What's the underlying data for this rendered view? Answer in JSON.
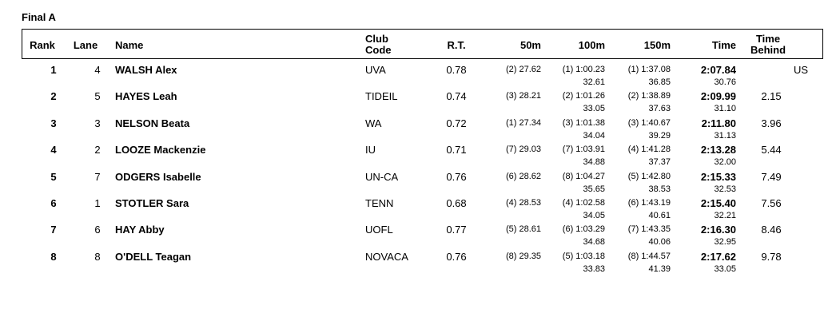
{
  "title": "Final A",
  "table": {
    "columns": [
      "Rank",
      "Lane",
      "Name",
      "Club Code",
      "R.T.",
      "50m",
      "100m",
      "150m",
      "Time",
      "Time Behind"
    ],
    "rows": [
      {
        "rank": "1",
        "lane": "4",
        "name": "WALSH Alex",
        "club": "UVA",
        "rt": "0.78",
        "s50": "(2) 27.62",
        "s100": "(1) 1:00.23",
        "s150": "(1) 1:37.08",
        "time": "2:07.84",
        "record": "US",
        "split100": "32.61",
        "split150": "36.85",
        "split_time": "30.76"
      },
      {
        "rank": "2",
        "lane": "5",
        "name": "HAYES Leah",
        "club": "TIDEIL",
        "rt": "0.74",
        "s50": "(3) 28.21",
        "s100": "(2) 1:01.26",
        "s150": "(2) 1:38.89",
        "time": "2:09.99",
        "behind": "2.15",
        "split100": "33.05",
        "split150": "37.63",
        "split_time": "31.10"
      },
      {
        "rank": "3",
        "lane": "3",
        "name": "NELSON Beata",
        "club": "WA",
        "rt": "0.72",
        "s50": "(1) 27.34",
        "s100": "(3) 1:01.38",
        "s150": "(3) 1:40.67",
        "time": "2:11.80",
        "behind": "3.96",
        "split100": "34.04",
        "split150": "39.29",
        "split_time": "31.13"
      },
      {
        "rank": "4",
        "lane": "2",
        "name": "LOOZE Mackenzie",
        "club": "IU",
        "rt": "0.71",
        "s50": "(7) 29.03",
        "s100": "(7) 1:03.91",
        "s150": "(4) 1:41.28",
        "time": "2:13.28",
        "behind": "5.44",
        "split100": "34.88",
        "split150": "37.37",
        "split_time": "32.00"
      },
      {
        "rank": "5",
        "lane": "7",
        "name": "ODGERS Isabelle",
        "club": "UN-CA",
        "rt": "0.76",
        "s50": "(6) 28.62",
        "s100": "(8) 1:04.27",
        "s150": "(5) 1:42.80",
        "time": "2:15.33",
        "behind": "7.49",
        "split100": "35.65",
        "split150": "38.53",
        "split_time": "32.53"
      },
      {
        "rank": "6",
        "lane": "1",
        "name": "STOTLER Sara",
        "club": "TENN",
        "rt": "0.68",
        "s50": "(4) 28.53",
        "s100": "(4) 1:02.58",
        "s150": "(6) 1:43.19",
        "time": "2:15.40",
        "behind": "7.56",
        "split100": "34.05",
        "split150": "40.61",
        "split_time": "32.21"
      },
      {
        "rank": "7",
        "lane": "6",
        "name": "HAY Abby",
        "club": "UOFL",
        "rt": "0.77",
        "s50": "(5) 28.61",
        "s100": "(6) 1:03.29",
        "s150": "(7) 1:43.35",
        "time": "2:16.30",
        "behind": "8.46",
        "split100": "34.68",
        "split150": "40.06",
        "split_time": "32.95"
      },
      {
        "rank": "8",
        "lane": "8",
        "name": "O'DELL Teagan",
        "club": "NOVACA",
        "rt": "0.76",
        "s50": "(8) 29.35",
        "s100": "(5) 1:03.18",
        "s150": "(8) 1:44.57",
        "time": "2:17.62",
        "behind": "9.78",
        "split100": "33.83",
        "split150": "41.39",
        "split_time": "33.05"
      }
    ]
  }
}
